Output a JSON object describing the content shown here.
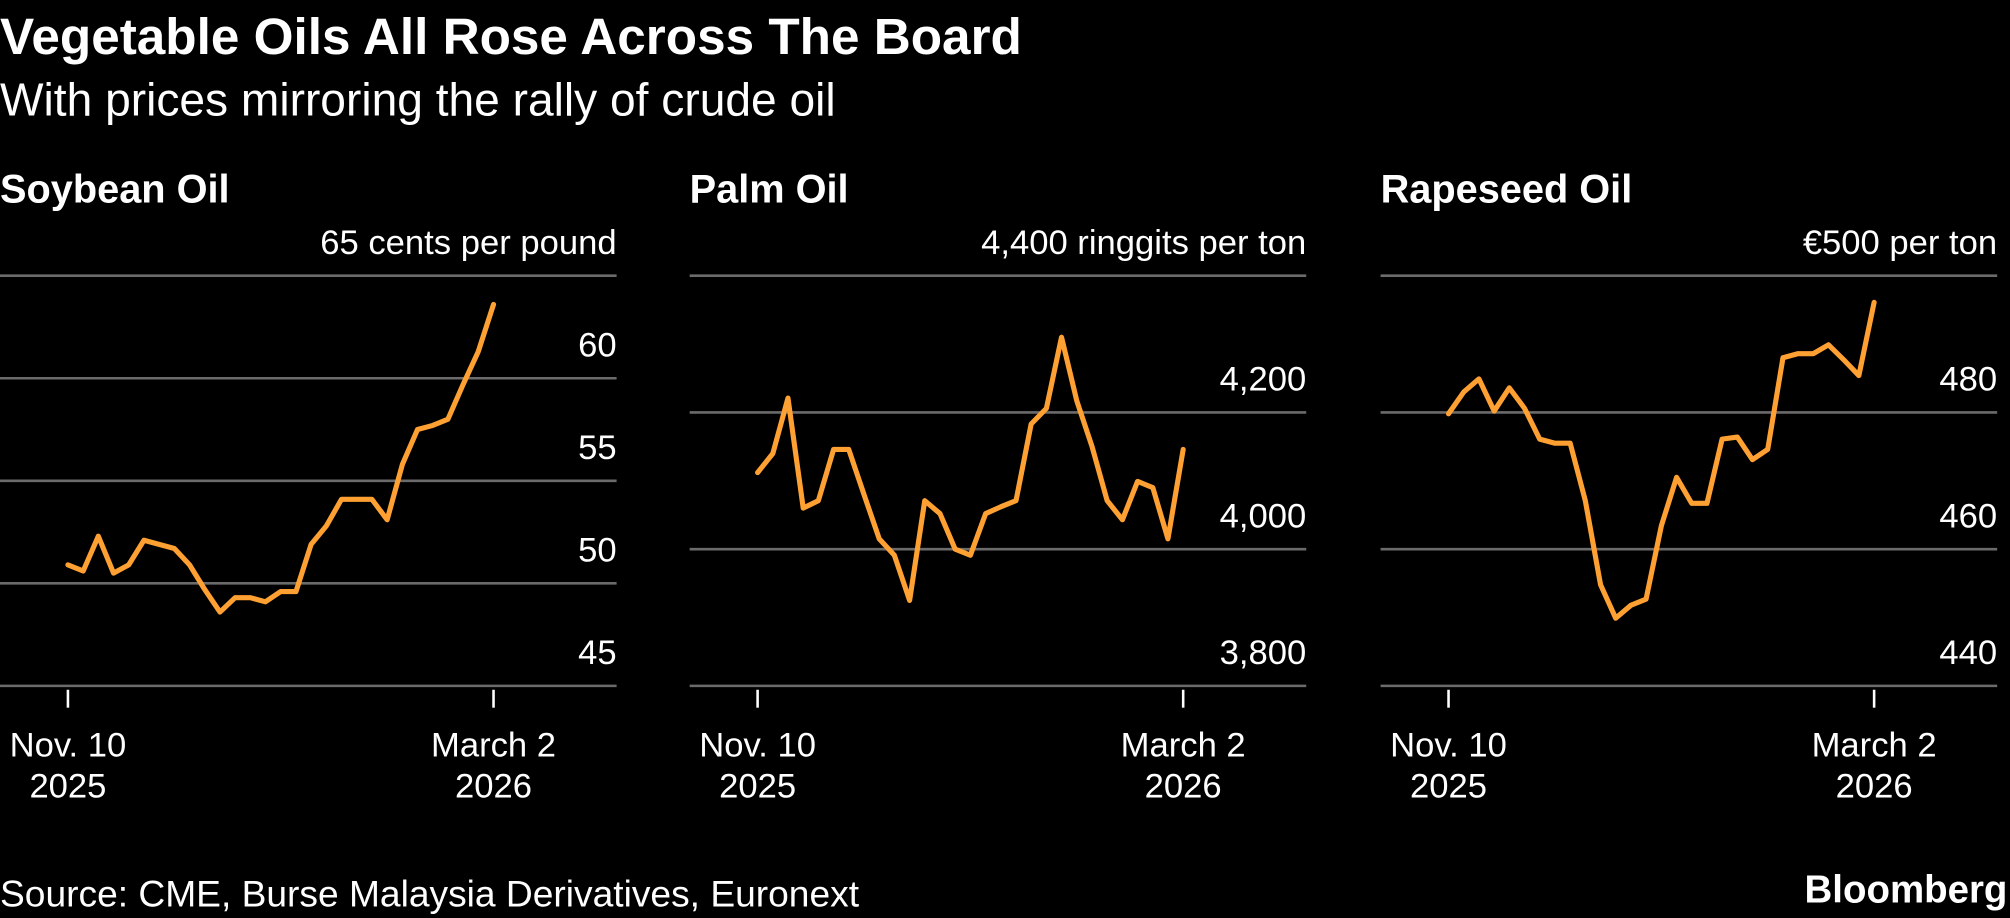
{
  "title": "Vegetable Oils All Rose Across The Board",
  "subtitle": "With prices mirroring the rally of crude oil",
  "source": "Source: CME, Burse Malaysia Derivatives, Euronext",
  "brand": "Bloomberg",
  "chart_data": [
    {
      "type": "line",
      "title": "Soybean Oil",
      "color": "#ffa033",
      "grid": true,
      "x": [
        "2025-11-10",
        "2025-11-14",
        "2025-11-18",
        "2025-11-22",
        "2025-11-26",
        "2025-11-30",
        "2025-12-04",
        "2025-12-08",
        "2025-12-12",
        "2025-12-16",
        "2025-12-20",
        "2025-12-24",
        "2025-12-28",
        "2026-01-01",
        "2026-01-05",
        "2026-01-09",
        "2026-01-13",
        "2026-01-17",
        "2026-01-21",
        "2026-01-25",
        "2026-01-29",
        "2026-02-02",
        "2026-02-06",
        "2026-02-10",
        "2026-02-14",
        "2026-02-18",
        "2026-02-22",
        "2026-02-26",
        "2026-03-02"
      ],
      "values": [
        50.9,
        50.6,
        52.3,
        50.5,
        50.9,
        52.1,
        51.9,
        51.7,
        50.9,
        49.7,
        48.6,
        49.3,
        49.3,
        49.1,
        49.6,
        49.6,
        51.9,
        52.8,
        54.1,
        54.1,
        54.1,
        53.1,
        55.8,
        57.5,
        57.7,
        58.0,
        59.7,
        61.3,
        63.6
      ],
      "ylim": [
        45,
        65
      ],
      "yticks": [
        45,
        50,
        55,
        60,
        {
          "value": 65,
          "label": "65 cents per pound"
        }
      ],
      "xticks": [
        {
          "value": "2025-11-10",
          "label": [
            "Nov. 10",
            "2025"
          ]
        },
        {
          "value": "2026-03-02",
          "label": [
            "March 2",
            "2026"
          ]
        }
      ]
    },
    {
      "type": "line",
      "title": "Palm Oil",
      "color": "#ffa033",
      "grid": true,
      "x": [
        "2025-11-10",
        "2025-11-14",
        "2025-11-18",
        "2025-11-22",
        "2025-11-26",
        "2025-11-30",
        "2025-12-04",
        "2025-12-08",
        "2025-12-12",
        "2025-12-16",
        "2025-12-20",
        "2025-12-24",
        "2025-12-28",
        "2026-01-01",
        "2026-01-05",
        "2026-01-09",
        "2026-01-13",
        "2026-01-17",
        "2026-01-21",
        "2026-01-25",
        "2026-01-29",
        "2026-02-02",
        "2026-02-06",
        "2026-02-10",
        "2026-02-14",
        "2026-02-18",
        "2026-02-22",
        "2026-02-26",
        "2026-03-02"
      ],
      "values": [
        4112,
        4140,
        4221,
        4060,
        4071,
        4146,
        4146,
        4080,
        4015,
        3991,
        3925,
        4071,
        4052,
        4000,
        3991,
        4052,
        4062,
        4071,
        4183,
        4206,
        4310,
        4217,
        4150,
        4071,
        4043,
        4099,
        4090,
        4015,
        4146
      ],
      "ylim": [
        3800,
        4400
      ],
      "yticks": [
        {
          "value": 3800,
          "label": "3,800"
        },
        {
          "value": 4000,
          "label": "4,000"
        },
        {
          "value": 4200,
          "label": "4,200"
        },
        {
          "value": 4400,
          "label": "4,400 ringgits per ton"
        }
      ],
      "xticks": [
        {
          "value": "2025-11-10",
          "label": [
            "Nov. 10",
            "2025"
          ]
        },
        {
          "value": "2026-03-02",
          "label": [
            "March 2",
            "2026"
          ]
        }
      ]
    },
    {
      "type": "line",
      "title": "Rapeseed Oil",
      "color": "#ffa033",
      "grid": true,
      "x": [
        "2025-11-10",
        "2025-11-14",
        "2025-11-18",
        "2025-11-22",
        "2025-11-26",
        "2025-11-30",
        "2025-12-04",
        "2025-12-08",
        "2025-12-12",
        "2025-12-16",
        "2025-12-20",
        "2025-12-24",
        "2025-12-28",
        "2026-01-01",
        "2026-01-05",
        "2026-01-09",
        "2026-01-13",
        "2026-01-17",
        "2026-01-21",
        "2026-01-25",
        "2026-01-29",
        "2026-02-02",
        "2026-02-06",
        "2026-02-10",
        "2026-02-14",
        "2026-02-18",
        "2026-02-22",
        "2026-02-26",
        "2026-03-02"
      ],
      "values": [
        479.8,
        483.0,
        484.9,
        480.2,
        483.6,
        480.6,
        476.1,
        475.5,
        475.5,
        467.1,
        454.8,
        449.9,
        451.8,
        452.7,
        463.4,
        470.5,
        466.7,
        466.7,
        476.1,
        476.4,
        473.1,
        474.6,
        488.0,
        488.6,
        488.6,
        489.9,
        487.7,
        485.4,
        496.1
      ],
      "ylim": [
        440,
        500
      ],
      "yticks": [
        440,
        460,
        480,
        {
          "value": 500,
          "label": "€500 per ton"
        }
      ],
      "xticks": [
        {
          "value": "2025-11-10",
          "label": [
            "Nov. 10",
            "2025"
          ]
        },
        {
          "value": "2026-03-02",
          "label": [
            "March 2",
            "2026"
          ]
        }
      ]
    }
  ]
}
